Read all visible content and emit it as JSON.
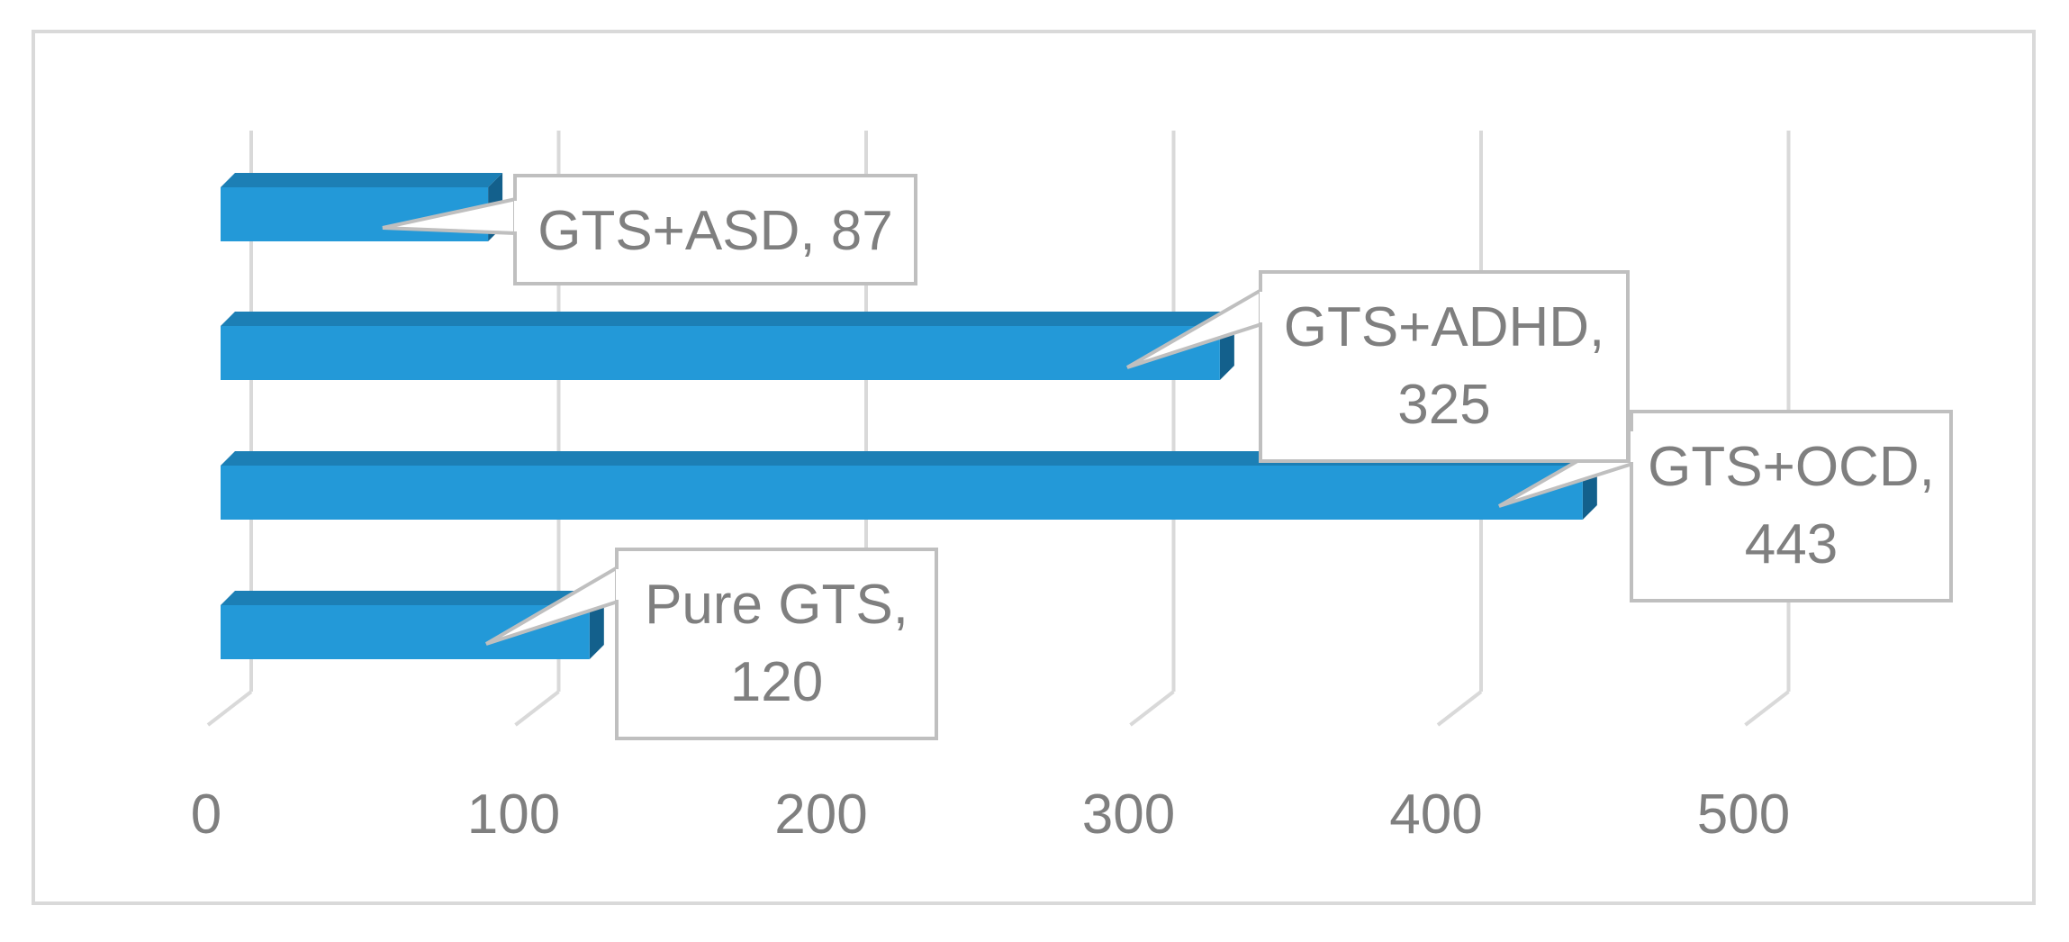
{
  "chart_data": {
    "type": "bar",
    "orientation": "horizontal",
    "style": "3d",
    "categories": [
      "Pure GTS",
      "GTS+OCD",
      "GTS+ADHD",
      "GTS+ASD"
    ],
    "values": [
      120,
      443,
      325,
      87
    ],
    "data_labels": [
      [
        "Pure GTS,",
        "120"
      ],
      [
        "GTS+OCD,",
        "443"
      ],
      [
        "GTS+ADHD,",
        "325"
      ],
      [
        "GTS+ASD, 87"
      ]
    ],
    "x_ticks": [
      "0",
      "100",
      "200",
      "300",
      "400",
      "500"
    ],
    "xlim": [
      0,
      500
    ],
    "grid": true,
    "legend": "none",
    "title": "",
    "xlabel": "",
    "ylabel": "",
    "colors": {
      "bar_front": "#2399d8",
      "bar_top": "#1c7fb5",
      "bar_side": "#13608c",
      "gridline": "#d9d9d9",
      "label_border": "#bfbfbf",
      "text": "#7f7f7f"
    }
  }
}
